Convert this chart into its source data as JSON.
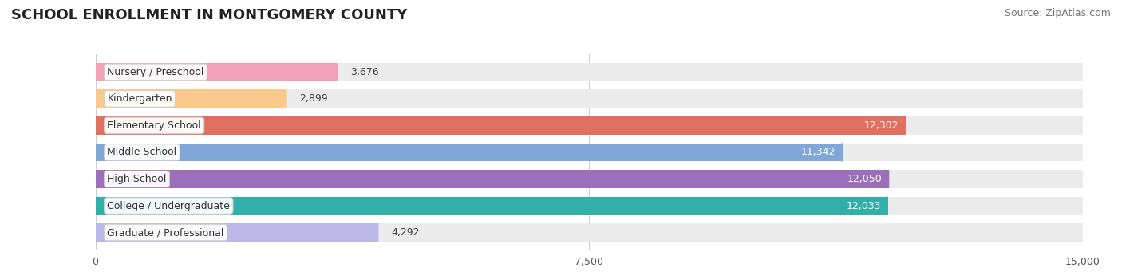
{
  "title": "SCHOOL ENROLLMENT IN MONTGOMERY COUNTY",
  "source": "Source: ZipAtlas.com",
  "categories": [
    "Nursery / Preschool",
    "Kindergarten",
    "Elementary School",
    "Middle School",
    "High School",
    "College / Undergraduate",
    "Graduate / Professional"
  ],
  "values": [
    3676,
    2899,
    12302,
    11342,
    12050,
    12033,
    4292
  ],
  "bar_colors": [
    "#f2a0b8",
    "#f8c98a",
    "#e07060",
    "#7fa8d8",
    "#9b6fba",
    "#30b0a8",
    "#bcb8e8"
  ],
  "bar_bg_color": "#ebebeb",
  "xlim_max": 15000,
  "xticks": [
    0,
    7500,
    15000
  ],
  "xtick_labels": [
    "0",
    "7,500",
    "15,000"
  ],
  "title_fontsize": 13,
  "source_fontsize": 9,
  "label_fontsize": 9,
  "value_fontsize": 9,
  "background_color": "#ffffff"
}
